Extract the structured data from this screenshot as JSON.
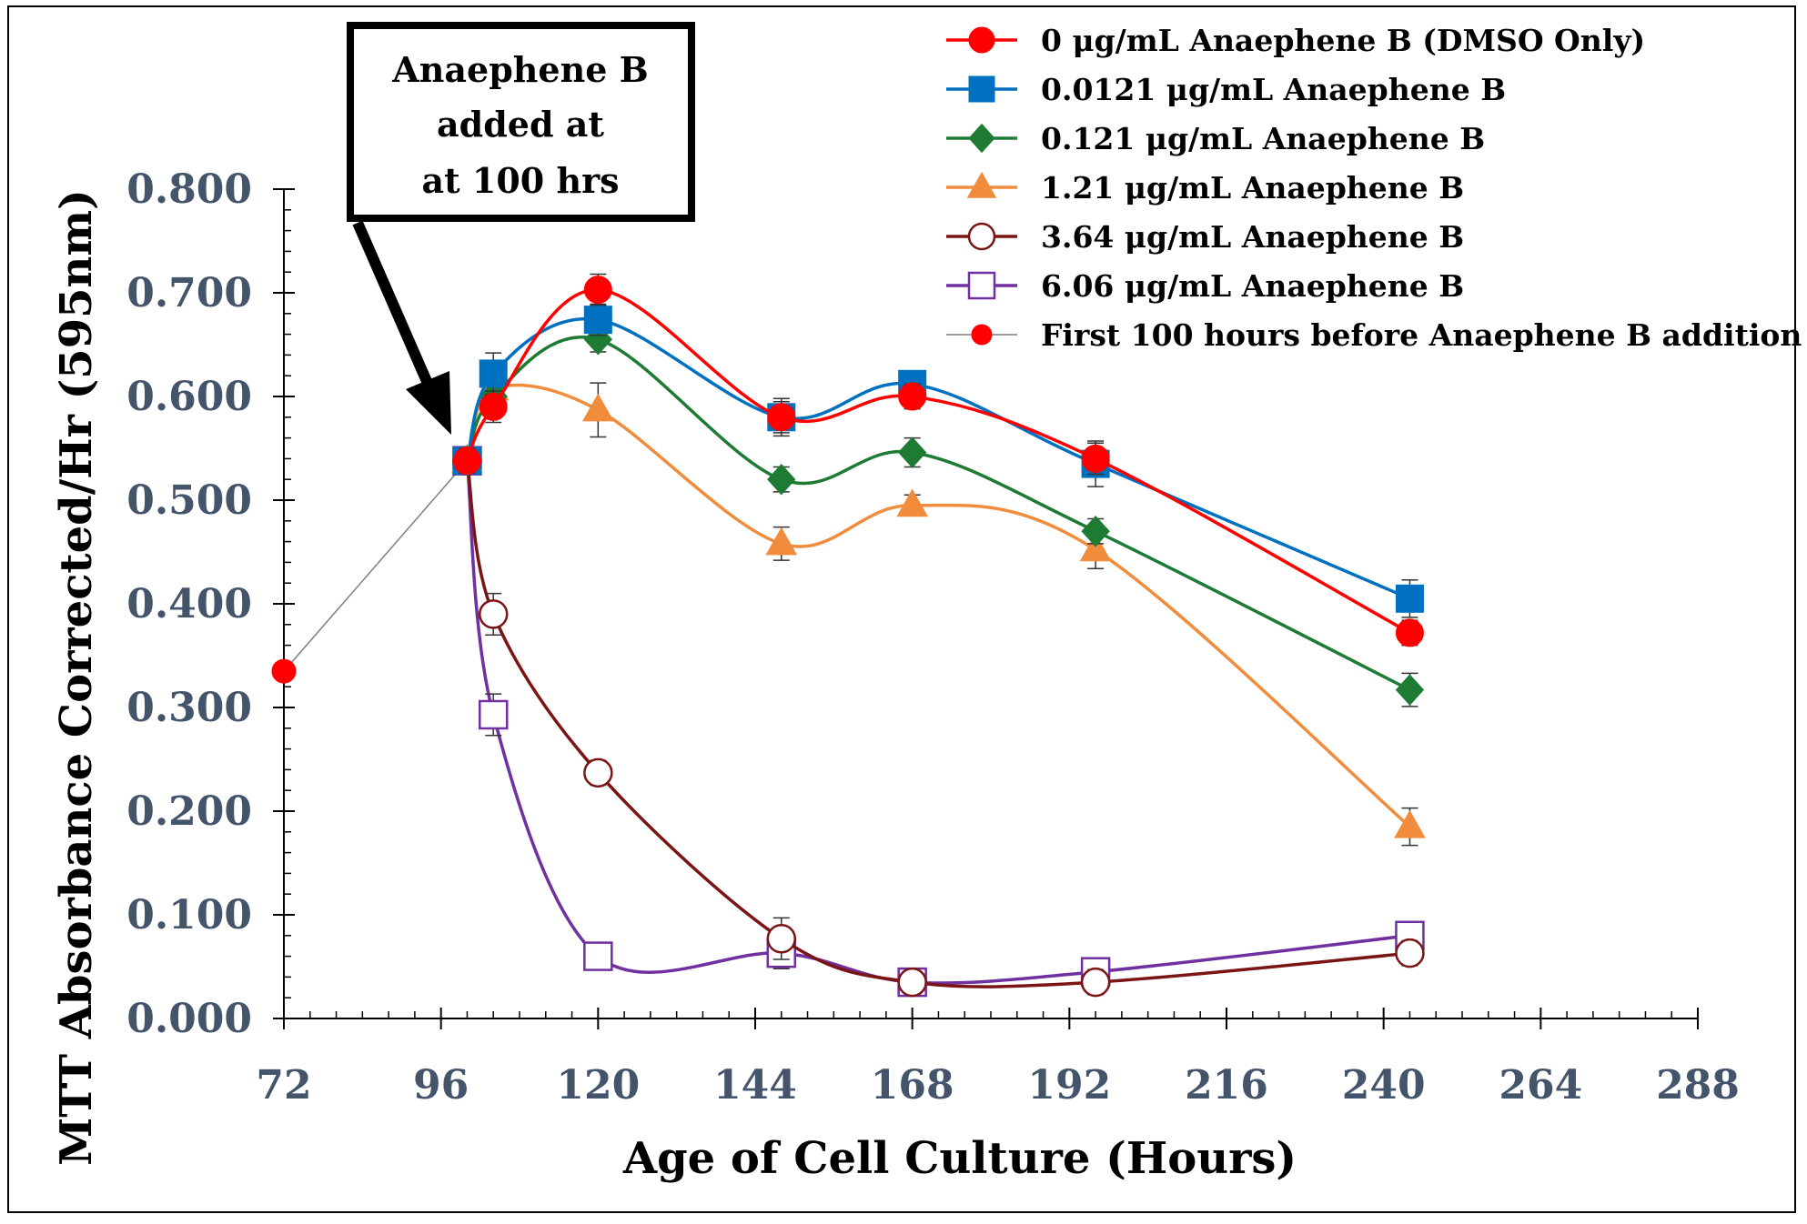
{
  "chart_data": {
    "type": "line",
    "xlabel": "Age of Cell Culture (Hours)",
    "ylabel": "MTT Absorbance Corrected/Hr (595nm)",
    "xlim": [
      72,
      288
    ],
    "ylim": [
      0,
      0.8
    ],
    "x_ticks": [
      "72",
      "96",
      "120",
      "144",
      "168",
      "192",
      "216",
      "240",
      "264",
      "288"
    ],
    "y_ticks": [
      "0.000",
      "0.100",
      "0.200",
      "0.300",
      "0.400",
      "0.500",
      "0.600",
      "0.700",
      "0.800"
    ],
    "x_tick_values": [
      72,
      96,
      120,
      144,
      168,
      192,
      216,
      240,
      264,
      288
    ],
    "y_tick_values": [
      0,
      0.1,
      0.2,
      0.3,
      0.4,
      0.5,
      0.6,
      0.7,
      0.8
    ],
    "annotation": {
      "lines": [
        "Anaephene B",
        "added at",
        "at 100 hrs"
      ],
      "target": {
        "x": 100,
        "y": 0.54
      }
    },
    "series": [
      {
        "name": "0 μg/mL Anaephene B (DMSO Only)",
        "color": "#ff0000",
        "marker": "circle",
        "filled": true,
        "smooth": true,
        "x": [
          100,
          104,
          120,
          148,
          168,
          196,
          244
        ],
        "y": [
          0.538,
          0.59,
          0.703,
          0.58,
          0.6,
          0.54,
          0.372
        ],
        "err": [
          0.012,
          0.015,
          0.015,
          0.015,
          0.012,
          0.015,
          0.012
        ]
      },
      {
        "name": "0.0121 μg/mL Anaephene B",
        "color": "#0070c0",
        "marker": "square",
        "filled": true,
        "smooth": true,
        "x": [
          100,
          104,
          120,
          148,
          168,
          196,
          244
        ],
        "y": [
          0.538,
          0.622,
          0.674,
          0.58,
          0.612,
          0.535,
          0.405
        ],
        "err": [
          0.012,
          0.02,
          0.015,
          0.018,
          0.01,
          0.022,
          0.018
        ]
      },
      {
        "name": "0.121 μg/mL Anaephene B",
        "color": "#1e7b34",
        "marker": "diamond",
        "filled": true,
        "smooth": true,
        "x": [
          100,
          104,
          120,
          148,
          168,
          196,
          244
        ],
        "y": [
          0.538,
          0.6,
          0.655,
          0.52,
          0.546,
          0.47,
          0.317
        ],
        "err": [
          0.012,
          0.012,
          0.012,
          0.012,
          0.014,
          0.012,
          0.016
        ]
      },
      {
        "name": "1.21 μg/mL Anaephene B",
        "color": "#f08c3c",
        "marker": "triangle",
        "filled": true,
        "smooth": true,
        "x": [
          100,
          104,
          120,
          148,
          168,
          196,
          244
        ],
        "y": [
          0.538,
          0.607,
          0.587,
          0.458,
          0.495,
          0.452,
          0.185
        ],
        "err": [
          0.012,
          0.014,
          0.026,
          0.016,
          0.01,
          0.018,
          0.018
        ]
      },
      {
        "name": "3.64 μg/mL Anaephene B",
        "color": "#7b1414",
        "marker": "circle",
        "filled": false,
        "smooth": true,
        "x": [
          100,
          104,
          120,
          148,
          168,
          196,
          244
        ],
        "y": [
          0.538,
          0.39,
          0.237,
          0.077,
          0.035,
          0.035,
          0.063
        ],
        "err": [
          0.012,
          0.02,
          0.012,
          0.02,
          0.01,
          0.012,
          0.012
        ]
      },
      {
        "name": "6.06 μg/mL Anaephene B",
        "color": "#7030a0",
        "marker": "square",
        "filled": false,
        "smooth": true,
        "x": [
          100,
          104,
          120,
          148,
          168,
          196,
          244
        ],
        "y": [
          0.538,
          0.293,
          0.06,
          0.063,
          0.035,
          0.045,
          0.08
        ],
        "err": [
          0.012,
          0.02,
          0.01,
          0.015,
          0.01,
          0.012,
          0.012
        ]
      },
      {
        "name": "First 100 hours before Anaephene B addition",
        "color": "#ff0000",
        "line_color": "#7f7f7f",
        "marker": "circle",
        "filled": true,
        "smooth": false,
        "small": true,
        "x": [
          72,
          100
        ],
        "y": [
          0.335,
          0.538
        ],
        "err": [
          0,
          0
        ]
      }
    ]
  }
}
